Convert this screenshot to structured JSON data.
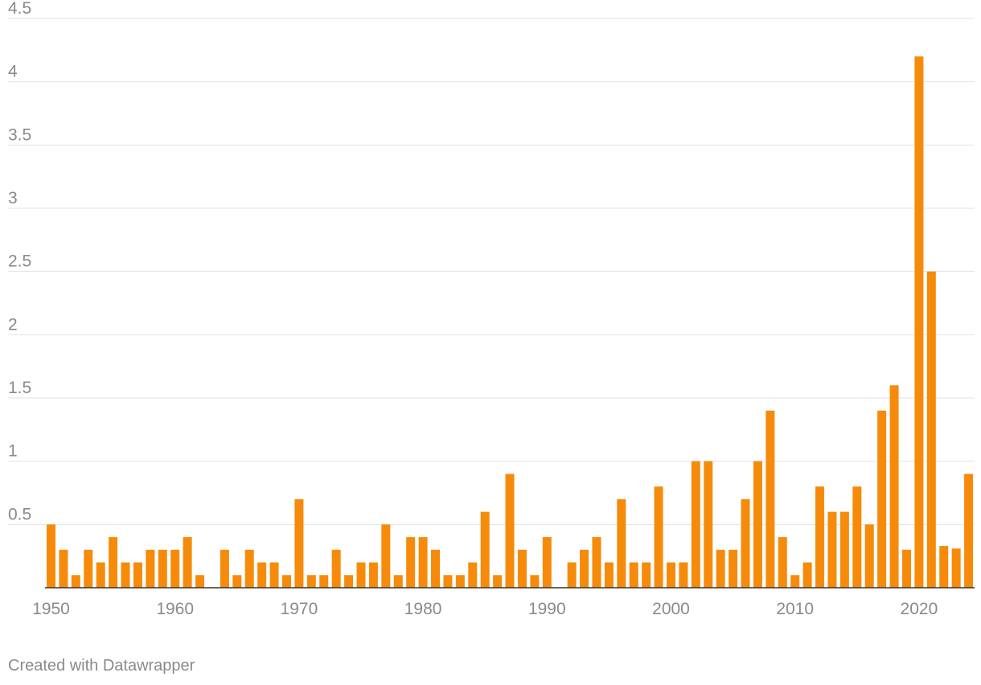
{
  "chart_data": {
    "type": "bar",
    "title": "",
    "xlabel": "",
    "ylabel": "",
    "ylim": [
      0,
      4.5
    ],
    "yticks": [
      "0.5",
      "1",
      "1.5",
      "2",
      "2.5",
      "3",
      "3.5",
      "4",
      "4.5"
    ],
    "xticks": [
      "1950",
      "1960",
      "1970",
      "1980",
      "1990",
      "2000",
      "2010",
      "2020"
    ],
    "grid": true,
    "bar_color": "#f68b0b",
    "x": [
      1950,
      1951,
      1952,
      1953,
      1954,
      1955,
      1956,
      1957,
      1958,
      1959,
      1960,
      1961,
      1962,
      1963,
      1964,
      1965,
      1966,
      1967,
      1968,
      1969,
      1970,
      1971,
      1972,
      1973,
      1974,
      1975,
      1976,
      1977,
      1978,
      1979,
      1980,
      1981,
      1982,
      1983,
      1984,
      1985,
      1986,
      1987,
      1988,
      1989,
      1990,
      1991,
      1992,
      1993,
      1994,
      1995,
      1996,
      1997,
      1998,
      1999,
      2000,
      2001,
      2002,
      2003,
      2004,
      2005,
      2006,
      2007,
      2008,
      2009,
      2010,
      2011,
      2012,
      2013,
      2014,
      2015,
      2016,
      2017,
      2018,
      2019,
      2020,
      2021,
      2022,
      2023,
      2024
    ],
    "values": [
      0.5,
      0.3,
      0.1,
      0.3,
      0.2,
      0.4,
      0.2,
      0.2,
      0.3,
      0.3,
      0.3,
      0.4,
      0.1,
      0,
      0.3,
      0.1,
      0.3,
      0.2,
      0.2,
      0.1,
      0.7,
      0.1,
      0.1,
      0.3,
      0.1,
      0.2,
      0.2,
      0.5,
      0.1,
      0.4,
      0.4,
      0.3,
      0.1,
      0.1,
      0.2,
      0.6,
      0.1,
      0.9,
      0.3,
      0.1,
      0.4,
      0,
      0.2,
      0.3,
      0.4,
      0.2,
      0.7,
      0.2,
      0.2,
      0.8,
      0.2,
      0.2,
      1.0,
      1.0,
      0.3,
      0.3,
      0.7,
      1.0,
      1.4,
      0.4,
      0.1,
      0.2,
      0.8,
      0.6,
      0.6,
      0.8,
      0.5,
      1.4,
      1.6,
      0.3,
      4.2,
      2.5,
      0.33,
      0.31,
      0.9
    ]
  },
  "footer": {
    "credit": "Created with Datawrapper"
  }
}
